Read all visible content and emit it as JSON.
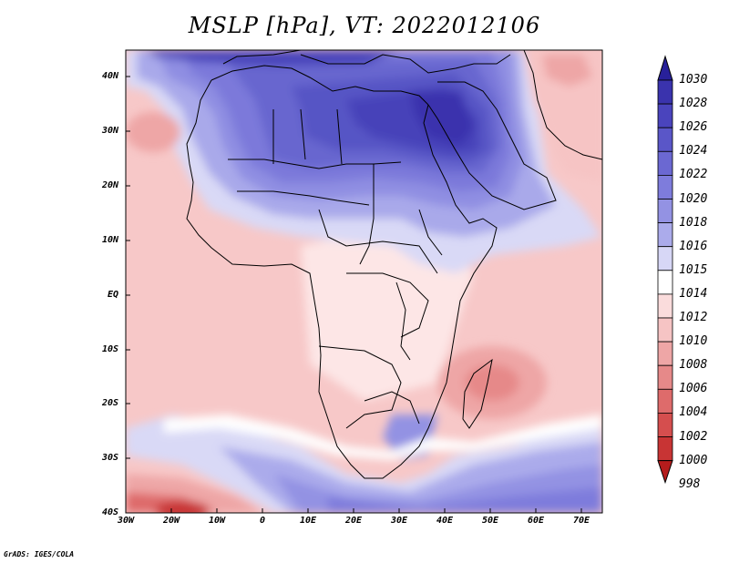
{
  "title": "MSLP [hPa], VT: 2022012106",
  "credit": "GrADS: IGES/COLA",
  "y_ticks": [
    "40N",
    "30N",
    "20N",
    "10N",
    "EQ",
    "10S",
    "20S",
    "30S",
    "40S"
  ],
  "x_ticks": [
    "30W",
    "20W",
    "10W",
    "0",
    "10E",
    "20E",
    "30E",
    "40E",
    "50E",
    "60E",
    "70E"
  ],
  "colorbar": {
    "levels": [
      "1030",
      "1028",
      "1026",
      "1024",
      "1022",
      "1020",
      "1018",
      "1016",
      "1015",
      "1014",
      "1012",
      "1010",
      "1008",
      "1006",
      "1004",
      "1002",
      "1000",
      "998"
    ],
    "colors": [
      "#28209a",
      "#3a33ad",
      "#4a44bd",
      "#5a56c8",
      "#6b68d2",
      "#7e7cdc",
      "#9392e3",
      "#ababeb",
      "#d7d7f6",
      "#ffffff",
      "#fadcdc",
      "#f6c4c4",
      "#eea6a6",
      "#e68989",
      "#de6b6b",
      "#d54e4e",
      "#c83434",
      "#b51c1c"
    ]
  },
  "colors": {
    "high_dark": "#28209a",
    "background_pink": "#f7c5c5",
    "low_red": "#c83434"
  }
}
